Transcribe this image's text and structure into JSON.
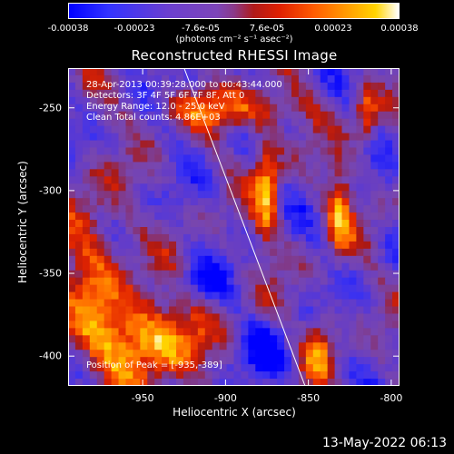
{
  "chart_data": {
    "type": "heatmap",
    "title": "Reconstructed RHESSI Image",
    "xlabel": "Heliocentric X (arcsec)",
    "ylabel": "Heliocentric Y (arcsec)",
    "xlim": [
      -995,
      -795
    ],
    "ylim": [
      -418,
      -226
    ],
    "x_ticks": [
      "-950",
      "-900",
      "-850",
      "-800"
    ],
    "x_tick_values": [
      -950,
      -900,
      -850,
      -800
    ],
    "y_ticks": [
      "-250",
      "-300",
      "-350",
      "-400"
    ],
    "y_tick_values": [
      -250,
      -300,
      -350,
      -400
    ],
    "colorbar": {
      "ticks": [
        "-0.00038",
        "-0.00023",
        "-7.6e-05",
        "7.6e-05",
        "0.00023",
        "0.00038"
      ],
      "unit": "(photons cm⁻² s⁻¹ asec⁻²)",
      "range": [
        -0.00038,
        0.00038
      ]
    },
    "info_lines": [
      "28-Apr-2013 00:39:28.000 to 00:43:44.000",
      "Detectors: 3F 4F 5F 6F 7F 8F, Att 0",
      "Energy Range: 12.0 - 25.0 keV",
      "Clean    Total counts: 4.86E+03"
    ],
    "peak_text": "Position of Peak = [-935,-389]",
    "limb_line": {
      "start": [
        -925,
        -226
      ],
      "end": [
        -852,
        -418
      ]
    }
  },
  "footer": {
    "date": "13-May-2022 06:13"
  }
}
